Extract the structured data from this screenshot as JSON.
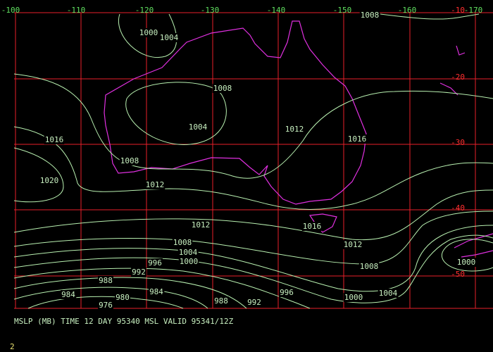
{
  "map": {
    "lon_labels": [
      "-100",
      "-110",
      "-120",
      "-130",
      "-140",
      "-150",
      "-160",
      "-170"
    ],
    "lat_labels": [
      "-10",
      "-20",
      "-30",
      "-40",
      "-50"
    ],
    "contour_labels": [
      "1008",
      "1000",
      "1004",
      "1008",
      "1004",
      "1012",
      "1016",
      "1016",
      "1008",
      "1020",
      "1012",
      "1012",
      "1016",
      "1012",
      "1008",
      "1004",
      "1000",
      "996",
      "1008",
      "992",
      "1000",
      "988",
      "984",
      "984",
      "980",
      "976",
      "988",
      "992",
      "996",
      "1000",
      "1004"
    ],
    "caption": "MSLP (MB) TIME 12 DAY 95340 MSL VALID 95341/12Z",
    "page_number": "2"
  }
}
